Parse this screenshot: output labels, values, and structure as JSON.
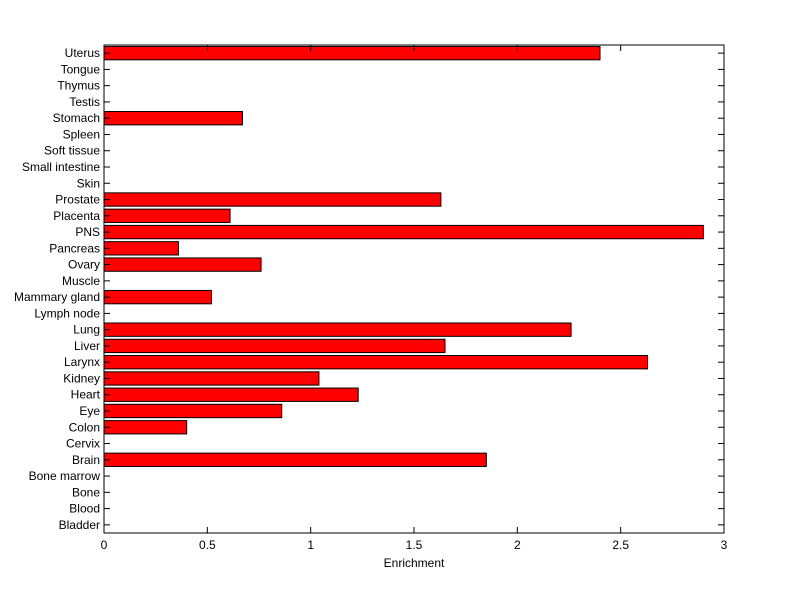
{
  "chart_data": {
    "type": "bar",
    "orientation": "horizontal",
    "title": "",
    "xlabel": "Enrichment",
    "ylabel": "",
    "xlim": [
      0,
      3
    ],
    "xticks": [
      "0",
      "0.5",
      "1",
      "1.5",
      "2",
      "2.5",
      "3"
    ],
    "grid": false,
    "legend": "none",
    "bar_color": "#ff0000",
    "categories": [
      "Bladder",
      "Blood",
      "Bone",
      "Bone marrow",
      "Brain",
      "Cervix",
      "Colon",
      "Eye",
      "Heart",
      "Kidney",
      "Larynx",
      "Liver",
      "Lung",
      "Lymph node",
      "Mammary gland",
      "Muscle",
      "Ovary",
      "Pancreas",
      "PNS",
      "Placenta",
      "Prostate",
      "Skin",
      "Small intestine",
      "Soft tissue",
      "Spleen",
      "Stomach",
      "Testis",
      "Thymus",
      "Tongue",
      "Uterus"
    ],
    "values": [
      0,
      0,
      0,
      0,
      1.85,
      0,
      0.4,
      0.86,
      1.23,
      1.04,
      2.63,
      1.65,
      2.26,
      0,
      0.52,
      0,
      0.76,
      0.36,
      2.9,
      0.61,
      1.63,
      0,
      0,
      0,
      0,
      0.67,
      0,
      0,
      0,
      2.4
    ]
  }
}
